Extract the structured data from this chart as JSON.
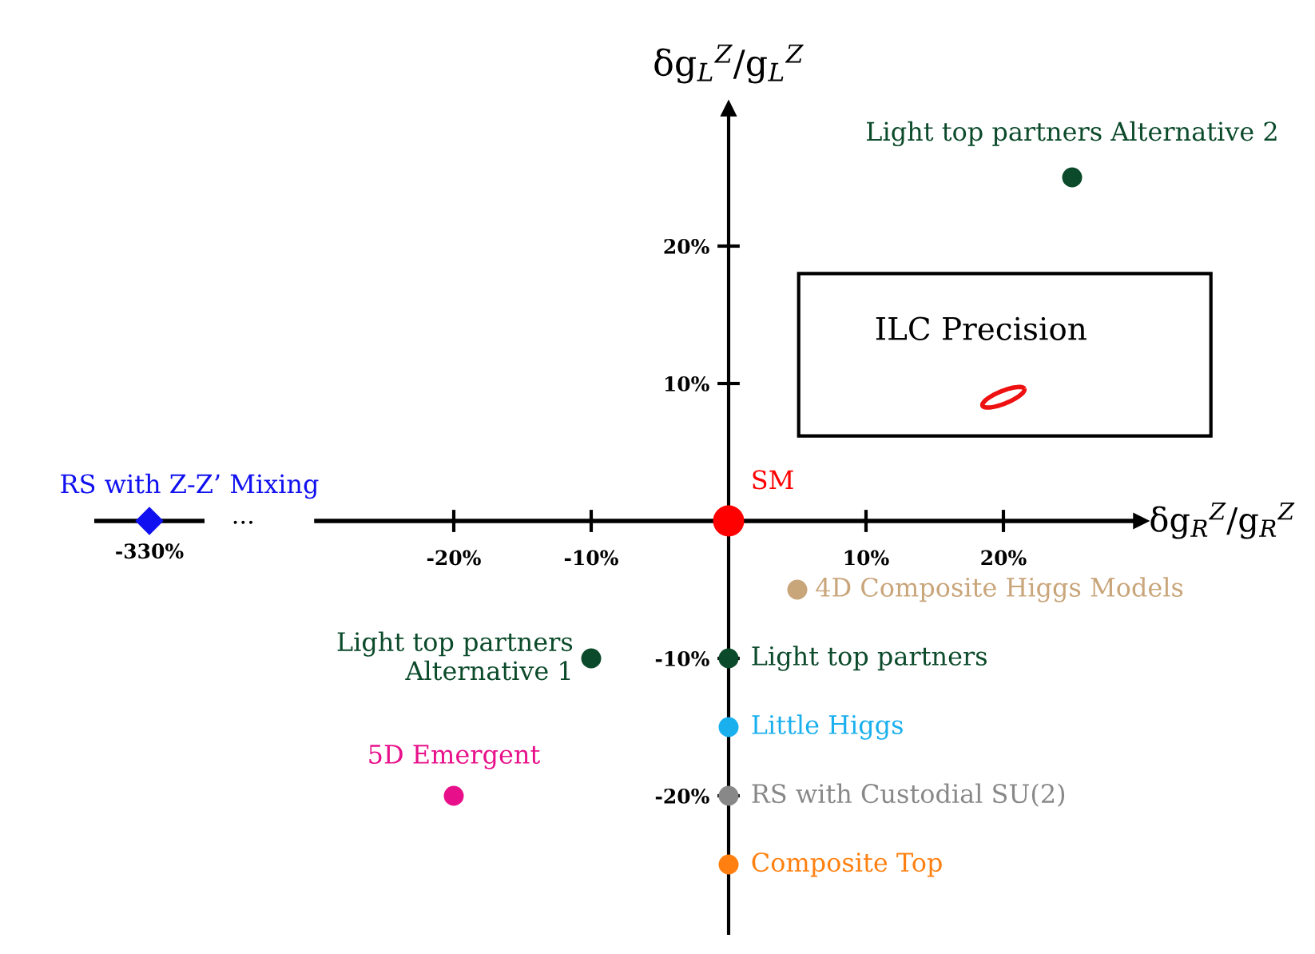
{
  "chart_data": [
    {
      "type": "other",
      "annotations": [
        "..."
      ],
      "series": [
        {
          "name": "RS with Z-Z’ Mixing",
          "color": "#1010f0",
          "marker": "diamond",
          "values": [
            -330
          ],
          "value_labels": [
            "-330%"
          ]
        }
      ]
    },
    {
      "type": "scatter",
      "xlabel": "δg$_{R}$$^{Z}$/g$_{R}$$^{Z}$",
      "ylabel": "δg$_{L}$$^{Z}$/g$_{L}$$^{Z}$",
      "xlim": [
        -30,
        30
      ],
      "ylim": [
        -30,
        30
      ],
      "xticks": [
        {
          "value": -20,
          "label": "-20%"
        },
        {
          "value": -10,
          "label": "-10%"
        },
        {
          "value": 10,
          "label": "10%"
        },
        {
          "value": 20,
          "label": "20%"
        }
      ],
      "yticks": [
        {
          "value": -20,
          "label": "-20%"
        },
        {
          "value": -10,
          "label": "-10%"
        },
        {
          "value": 10,
          "label": "10%"
        },
        {
          "value": 20,
          "label": "20%"
        }
      ],
      "grid": false,
      "legend": false,
      "marker": "circle",
      "annotations": [
        "ILC Precision"
      ],
      "series": [
        {
          "name": "SM",
          "color": "#ff0000",
          "x": [
            0
          ],
          "values": [
            0
          ]
        },
        {
          "name": "Light top partners Alternative 2",
          "color": "#0b4a2a",
          "x": [
            25
          ],
          "values": [
            25
          ]
        },
        {
          "name": "4D Composite Higgs Models",
          "color": "#c9a57a",
          "x": [
            5
          ],
          "values": [
            -5
          ]
        },
        {
          "name": "Light top partners\nAlternative 1",
          "color": "#0b4a2a",
          "x": [
            -10
          ],
          "values": [
            -10
          ]
        },
        {
          "name": "Light top partners",
          "color": "#0b4a2a",
          "x": [
            0
          ],
          "values": [
            -10
          ]
        },
        {
          "name": "Little Higgs",
          "color": "#1ab0ee",
          "x": [
            0
          ],
          "values": [
            -15
          ]
        },
        {
          "name": "RS with Custodial SU(2)",
          "color": "#888888",
          "x": [
            0
          ],
          "values": [
            -20
          ]
        },
        {
          "name": "Composite Top",
          "color": "#ff8010",
          "x": [
            0
          ],
          "values": [
            -25
          ]
        },
        {
          "name": "5D Emergent",
          "color": "#e8108a",
          "x": [
            -20
          ],
          "values": [
            -20
          ]
        },
        {
          "color": "#ee1111",
          "x": [
            20
          ],
          "values": [
            9
          ]
        }
      ]
    }
  ]
}
